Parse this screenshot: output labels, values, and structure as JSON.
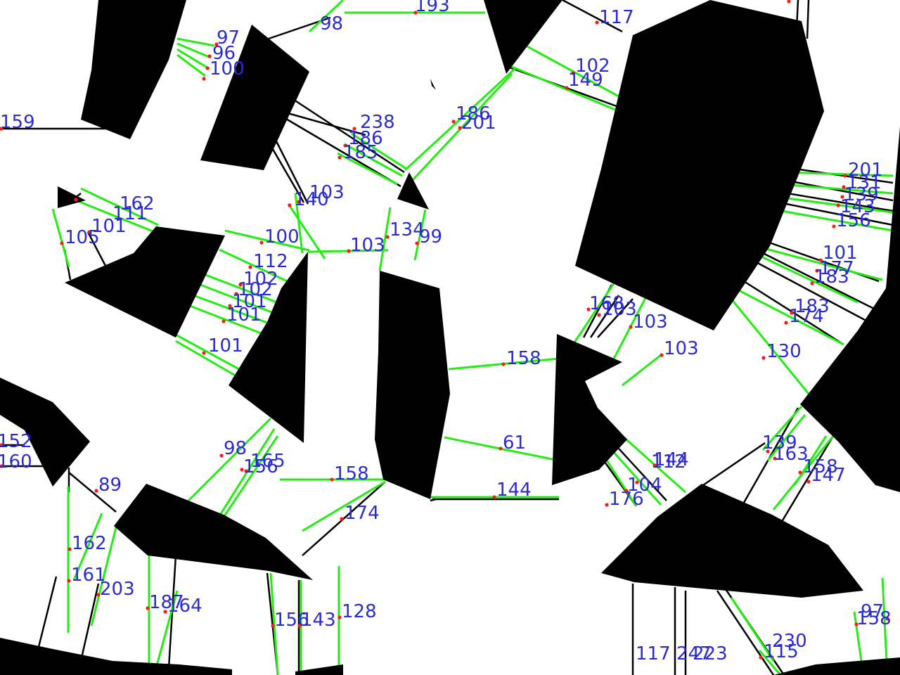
{
  "labels": [
    "193",
    "98",
    "117",
    "97",
    "96",
    "100",
    "102",
    "149",
    "159",
    "238",
    "186",
    "185",
    "186",
    "201",
    "201",
    "131",
    "139",
    "143",
    "156",
    "162",
    "111",
    "105",
    "101",
    "103",
    "140",
    "134",
    "99",
    "100",
    "103",
    "112",
    "102",
    "102",
    "101",
    "101",
    "101",
    "101",
    "177",
    "183",
    "183",
    "174",
    "168",
    "103",
    "103",
    "103",
    "130",
    "158",
    "152",
    "160",
    "61",
    "89",
    "98",
    "165",
    "156",
    "158",
    "144",
    "174",
    "162",
    "161",
    "203",
    "187",
    "164",
    "156",
    "143",
    "128",
    "139",
    "163",
    "158",
    "147",
    "144",
    "112",
    "104",
    "176",
    "117",
    "247",
    "223",
    "230",
    "115",
    "158",
    "97",
    "112"
  ],
  "colors": {
    "shape": "#000000",
    "green_line": "#22ee11",
    "black_line": "#000000",
    "node": "#ff1a1a",
    "label": "#2b2bd6"
  }
}
